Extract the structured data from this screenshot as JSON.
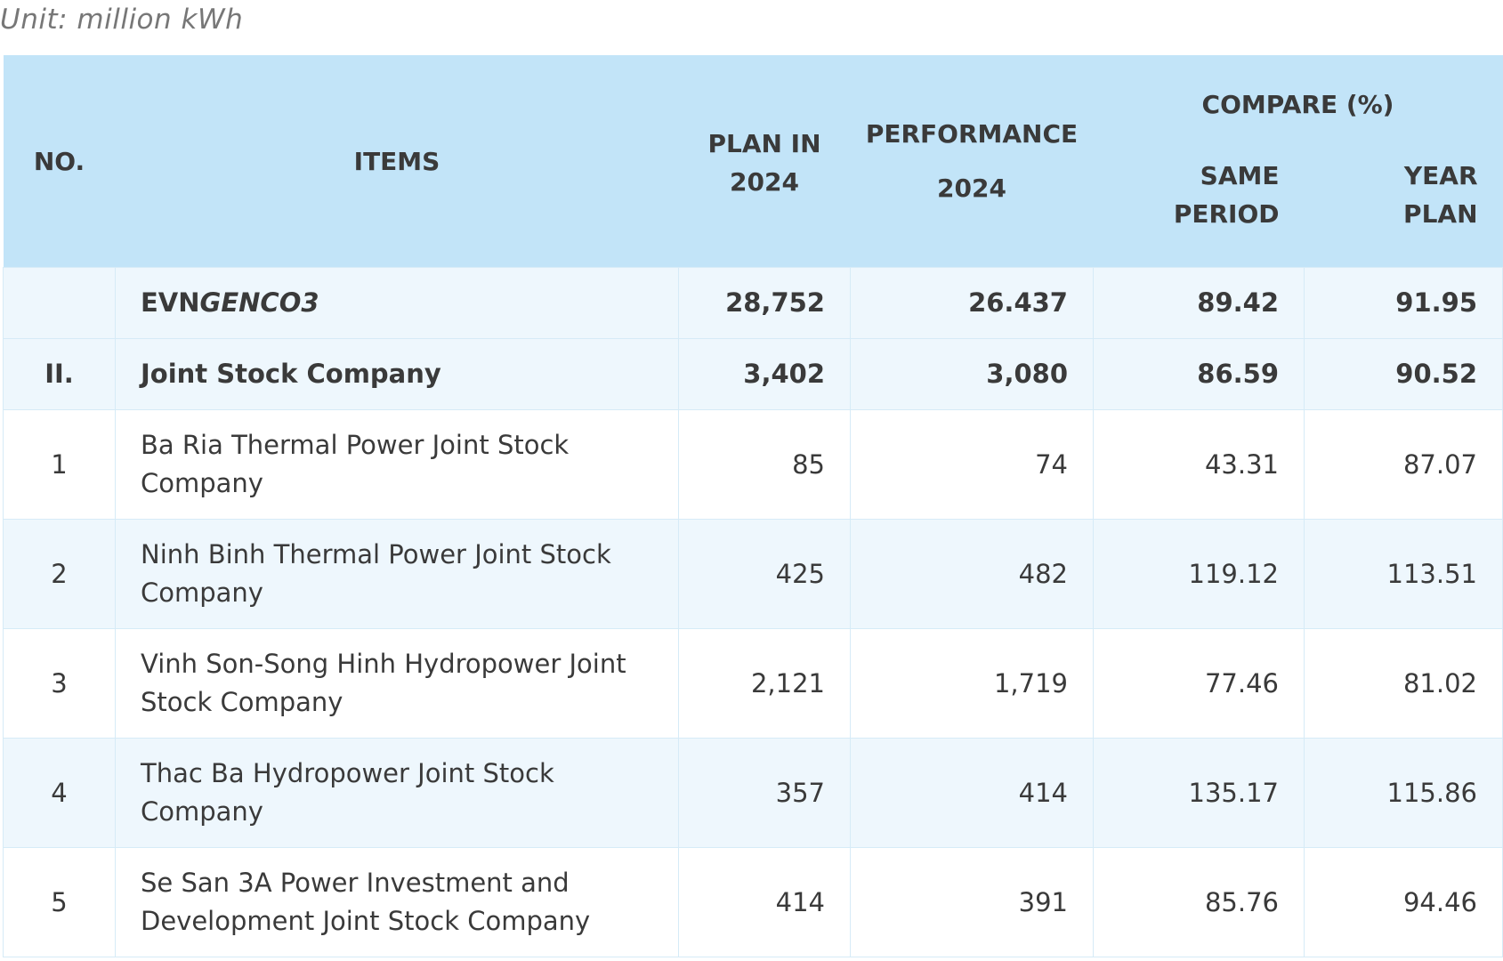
{
  "unit_label": "Unit: million kWh",
  "header": {
    "no": "NO.",
    "items": "ITEMS",
    "plan_line1": "PLAN IN",
    "plan_line2": "2024",
    "performance_line1": "PERFORMANCE",
    "performance_line2": "2024",
    "compare": "COMPARE (%)",
    "same_line1": "SAME",
    "same_line2": "PERIOD",
    "year_line1": "YEAR",
    "year_line2": "PLAN"
  },
  "summary_rows": [
    {
      "no": "",
      "name_prefix": "EVN",
      "name_italic": "GENCO3",
      "plan": "28,752",
      "performance": "26.437",
      "same_period": "89.42",
      "year_plan": "91.95"
    },
    {
      "no": "II.",
      "name": "Joint Stock Company",
      "plan": "3,402",
      "performance": "3,080",
      "same_period": "86.59",
      "year_plan": "90.52"
    }
  ],
  "rows": [
    {
      "no": "1",
      "name": "Ba Ria Thermal Power Joint Stock Company",
      "plan": "85",
      "performance": "74",
      "same_period": "43.31",
      "year_plan": "87.07"
    },
    {
      "no": "2",
      "name": "Ninh Binh Thermal Power Joint Stock Company",
      "plan": "425",
      "performance": "482",
      "same_period": "119.12",
      "year_plan": "113.51"
    },
    {
      "no": "3",
      "name": "Vinh Son-Song Hinh Hydropower Joint Stock Company",
      "plan": "2,121",
      "performance": "1,719",
      "same_period": "77.46",
      "year_plan": "81.02"
    },
    {
      "no": "4",
      "name": "Thac Ba Hydropower Joint Stock Company",
      "plan": "357",
      "performance": "414",
      "same_period": "135.17",
      "year_plan": "115.86"
    },
    {
      "no": "5",
      "name": "Se San 3A Power Investment and Development Joint Stock Company",
      "plan": "414",
      "performance": "391",
      "same_period": "85.76",
      "year_plan": "94.46"
    }
  ]
}
